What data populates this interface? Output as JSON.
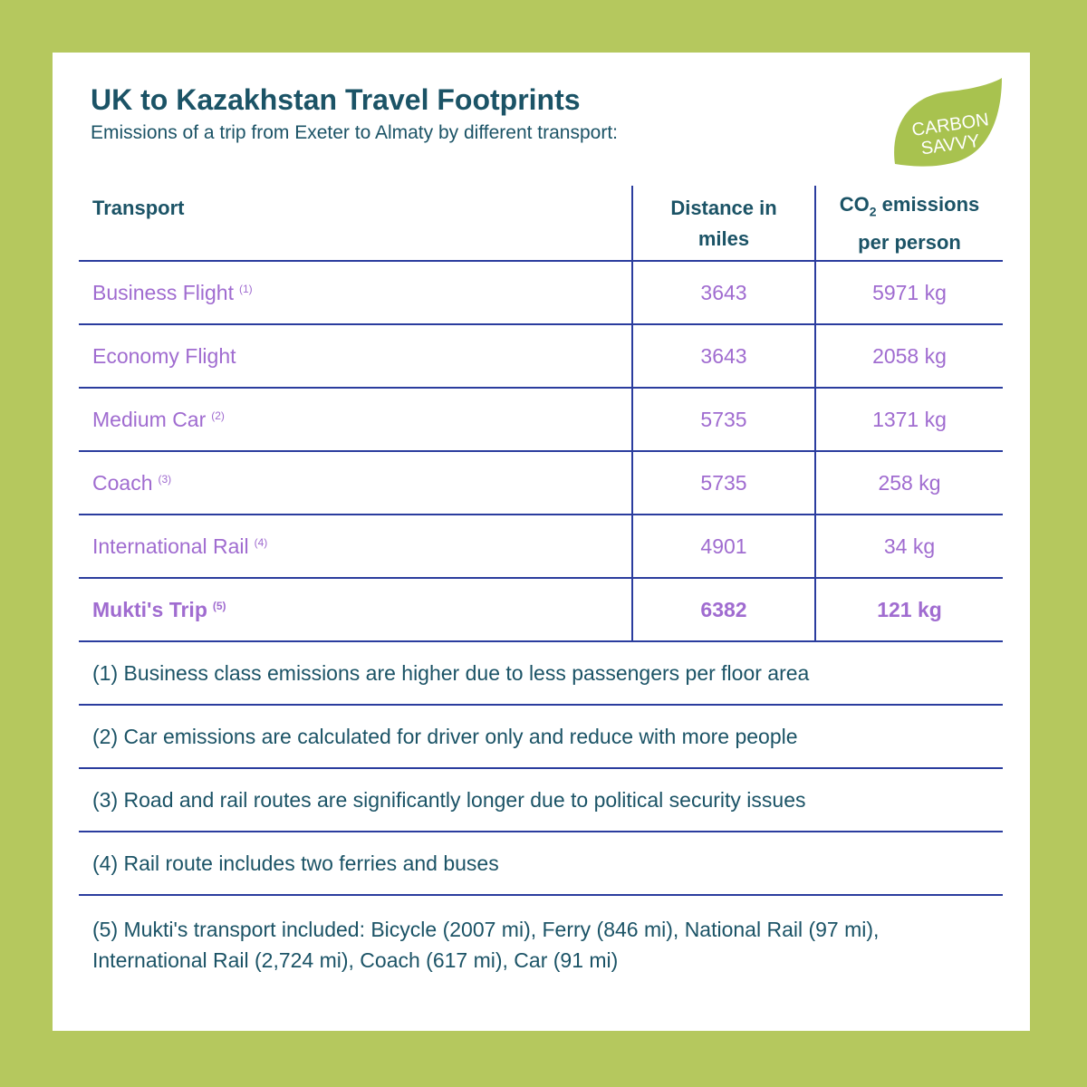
{
  "header": {
    "title": "UK to Kazakhstan Travel Footprints",
    "subtitle": "Emissions of a trip from Exeter to Almaty by different transport:"
  },
  "logo": {
    "line1": "CARBON",
    "line2": "SAVVY",
    "icon": "leaf-icon",
    "color": "#a8c24f"
  },
  "table": {
    "columns": {
      "transport": "Transport",
      "distance_line1": "Distance in",
      "distance_line2": "miles",
      "emissions_prefix": "CO",
      "emissions_sub": "2",
      "emissions_line1_suffix": " emissions",
      "emissions_line2": "per person"
    },
    "rows": [
      {
        "transport": "Business Flight",
        "note": "(1)",
        "distance": "3643",
        "emissions": "5971 kg"
      },
      {
        "transport": "Economy Flight",
        "note": "",
        "distance": "3643",
        "emissions": "2058 kg"
      },
      {
        "transport": "Medium Car",
        "note": "(2)",
        "distance": "5735",
        "emissions": "1371 kg"
      },
      {
        "transport": "Coach",
        "note": "(3)",
        "distance": "5735",
        "emissions": "258 kg"
      },
      {
        "transport": "International Rail",
        "note": "(4)",
        "distance": "4901",
        "emissions": "34 kg"
      },
      {
        "transport": "Mukti's Trip",
        "note": "(5)",
        "distance": "6382",
        "emissions": "121 kg"
      }
    ]
  },
  "notes": [
    "(1) Business class emissions are higher due to less passengers per floor area",
    "(2) Car emissions are calculated for driver only and reduce with more people",
    "(3) Road and rail routes are significantly longer due to political security issues",
    "(4) Rail route includes two ferries and buses"
  ],
  "last_note": {
    "line1": "(5) Mukti's transport included: Bicycle (2007 mi), Ferry (846 mi), National Rail (97 mi),",
    "line2": "International Rail (2,724 mi), Coach (617 mi), Car (91 mi)"
  },
  "colors": {
    "background": "#b5c85e",
    "title": "#1b5366",
    "data": "#a06cd0",
    "rule": "#2b3d9e"
  }
}
